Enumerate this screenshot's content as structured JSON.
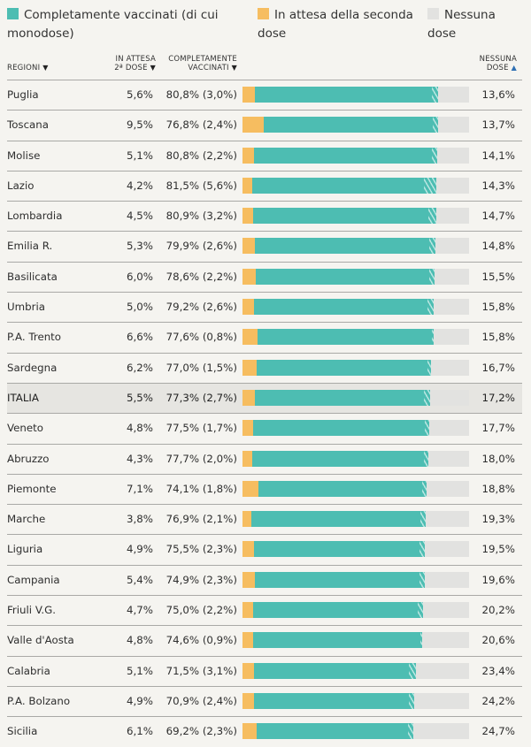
{
  "colors": {
    "completamente_vaccinati": "#4dbdb2",
    "in_attesa_seconda_dose": "#f6bd60",
    "nessuna_dose": "#e2e2e0",
    "background": "#f5f4f0",
    "highlight_row": "#e6e5e1"
  },
  "legend": [
    {
      "label": "Completamente vaccinati (di cui monodose)",
      "color": "#4dbdb2"
    },
    {
      "label": "In attesa della seconda dose",
      "color": "#f6bd60"
    },
    {
      "label": "Nessuna dose",
      "color": "#e2e2e0"
    }
  ],
  "headers": {
    "regioni": "REGIONI",
    "regioni_sort": "▼",
    "in_attesa_line1": "IN ATTESA",
    "in_attesa_line2": "2ª DOSE",
    "in_attesa_sort": "▼",
    "completamente_line1": "COMPLETAMENTE",
    "completamente_line2": "VACCINATI",
    "completamente_sort": "▼",
    "nessuna_line1": "NESSUNA",
    "nessuna_line2": "DOSE",
    "nessuna_sort": "▲"
  },
  "chart_data": {
    "type": "bar",
    "orientation": "horizontal-stacked",
    "title": "",
    "xlabel": "",
    "ylabel": "",
    "xlim": [
      0,
      100
    ],
    "sort": "Nessuna dose ascending",
    "categories": [
      "Puglia",
      "Toscana",
      "Molise",
      "Lazio",
      "Lombardia",
      "Emilia R.",
      "Basilicata",
      "Umbria",
      "P.A. Trento",
      "Sardegna",
      "ITALIA",
      "Veneto",
      "Abruzzo",
      "Piemonte",
      "Marche",
      "Liguria",
      "Campania",
      "Friuli V.G.",
      "Valle d'Aosta",
      "Calabria",
      "P.A. Bolzano",
      "Sicilia"
    ],
    "highlight": "ITALIA",
    "series": [
      {
        "name": "In attesa della seconda dose",
        "color": "#f6bd60",
        "values": [
          5.6,
          9.5,
          5.1,
          4.2,
          4.5,
          5.3,
          6.0,
          5.0,
          6.6,
          6.2,
          5.5,
          4.8,
          4.3,
          7.1,
          3.8,
          4.9,
          5.4,
          4.7,
          4.8,
          5.1,
          4.9,
          6.1
        ]
      },
      {
        "name": "Completamente vaccinati",
        "color": "#4dbdb2",
        "values": [
          80.8,
          76.8,
          80.8,
          81.5,
          80.9,
          79.9,
          78.6,
          79.2,
          77.6,
          77.0,
          77.3,
          77.5,
          77.7,
          74.1,
          76.9,
          75.5,
          74.9,
          75.0,
          74.6,
          71.5,
          70.9,
          69.2
        ]
      },
      {
        "name": "di cui monodose",
        "color": "#b9e6e1",
        "values": [
          3.0,
          2.4,
          2.2,
          5.6,
          3.2,
          2.6,
          2.2,
          2.6,
          0.8,
          1.5,
          2.7,
          1.7,
          2.0,
          1.8,
          2.1,
          2.3,
          2.3,
          2.2,
          0.9,
          3.1,
          2.4,
          2.3
        ]
      },
      {
        "name": "Nessuna dose",
        "color": "#e2e2e0",
        "values": [
          13.6,
          13.7,
          14.1,
          14.3,
          14.7,
          14.8,
          15.5,
          15.8,
          15.8,
          16.7,
          17.2,
          17.7,
          18.0,
          18.8,
          19.3,
          19.5,
          19.6,
          20.2,
          20.6,
          23.4,
          24.2,
          24.7
        ]
      }
    ]
  },
  "rows": [
    {
      "region": "Puglia",
      "wait": "5,6%",
      "comp": "80,8% (3,0%)",
      "none": "13,6%"
    },
    {
      "region": "Toscana",
      "wait": "9,5%",
      "comp": "76,8% (2,4%)",
      "none": "13,7%"
    },
    {
      "region": "Molise",
      "wait": "5,1%",
      "comp": "80,8% (2,2%)",
      "none": "14,1%"
    },
    {
      "region": "Lazio",
      "wait": "4,2%",
      "comp": "81,5% (5,6%)",
      "none": "14,3%"
    },
    {
      "region": "Lombardia",
      "wait": "4,5%",
      "comp": "80,9% (3,2%)",
      "none": "14,7%"
    },
    {
      "region": "Emilia R.",
      "wait": "5,3%",
      "comp": "79,9% (2,6%)",
      "none": "14,8%"
    },
    {
      "region": "Basilicata",
      "wait": "6,0%",
      "comp": "78,6% (2,2%)",
      "none": "15,5%"
    },
    {
      "region": "Umbria",
      "wait": "5,0%",
      "comp": "79,2% (2,6%)",
      "none": "15,8%"
    },
    {
      "region": "P.A. Trento",
      "wait": "6,6%",
      "comp": "77,6% (0,8%)",
      "none": "15,8%"
    },
    {
      "region": "Sardegna",
      "wait": "6,2%",
      "comp": "77,0% (1,5%)",
      "none": "16,7%"
    },
    {
      "region": "ITALIA",
      "wait": "5,5%",
      "comp": "77,3% (2,7%)",
      "none": "17,2%"
    },
    {
      "region": "Veneto",
      "wait": "4,8%",
      "comp": "77,5% (1,7%)",
      "none": "17,7%"
    },
    {
      "region": "Abruzzo",
      "wait": "4,3%",
      "comp": "77,7% (2,0%)",
      "none": "18,0%"
    },
    {
      "region": "Piemonte",
      "wait": "7,1%",
      "comp": "74,1% (1,8%)",
      "none": "18,8%"
    },
    {
      "region": "Marche",
      "wait": "3,8%",
      "comp": "76,9% (2,1%)",
      "none": "19,3%"
    },
    {
      "region": "Liguria",
      "wait": "4,9%",
      "comp": "75,5% (2,3%)",
      "none": "19,5%"
    },
    {
      "region": "Campania",
      "wait": "5,4%",
      "comp": "74,9% (2,3%)",
      "none": "19,6%"
    },
    {
      "region": "Friuli V.G.",
      "wait": "4,7%",
      "comp": "75,0% (2,2%)",
      "none": "20,2%"
    },
    {
      "region": "Valle d'Aosta",
      "wait": "4,8%",
      "comp": "74,6% (0,9%)",
      "none": "20,6%"
    },
    {
      "region": "Calabria",
      "wait": "5,1%",
      "comp": "71,5% (3,1%)",
      "none": "23,4%"
    },
    {
      "region": "P.A. Bolzano",
      "wait": "4,9%",
      "comp": "70,9% (2,4%)",
      "none": "24,2%"
    },
    {
      "region": "Sicilia",
      "wait": "6,1%",
      "comp": "69,2% (2,3%)",
      "none": "24,7%"
    }
  ]
}
